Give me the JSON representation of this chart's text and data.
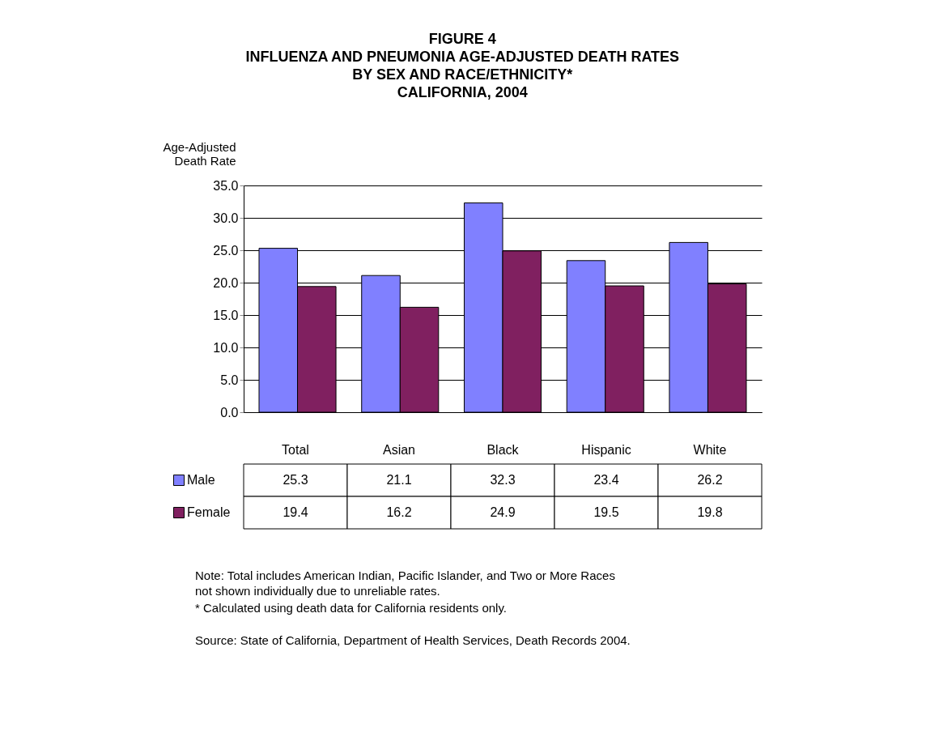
{
  "chart_data": {
    "type": "bar",
    "title": "FIGURE 4\nINFLUENZA AND PNEUMONIA AGE-ADJUSTED DEATH RATES\nBY SEX AND RACE/ETHNICITY*\nCALIFORNIA, 2004",
    "ylabel": "Age-Adjusted Death Rate",
    "categories": [
      "Total",
      "Asian",
      "Black",
      "Hispanic",
      "White"
    ],
    "series": [
      {
        "name": "Male",
        "color": "#8080ff",
        "values": [
          25.3,
          21.1,
          32.3,
          23.4,
          26.2
        ]
      },
      {
        "name": "Female",
        "color": "#802060",
        "values": [
          19.4,
          16.2,
          24.9,
          19.5,
          19.8
        ]
      }
    ],
    "ylim": [
      0,
      35
    ],
    "yticks": [
      {
        "value": 0,
        "label": "0.0"
      },
      {
        "value": 5,
        "label": "5.0"
      },
      {
        "value": 10,
        "label": "10.0"
      },
      {
        "value": 15,
        "label": "15.0"
      },
      {
        "value": 20,
        "label": "20.0"
      },
      {
        "value": 25,
        "label": "25.0"
      },
      {
        "value": 30,
        "label": "30.0"
      },
      {
        "value": 35,
        "label": "35.0"
      }
    ],
    "grid": "y",
    "data_labels": true,
    "legend": "bottom left",
    "annotations": [
      "Note:  Total includes American Indian, Pacific Islander, and Two or More Races not shown individually due to unreliable rates.",
      "* Calculated using death data for California residents only.",
      "Source: State of California, Department of Health Services, Death Records 2004."
    ]
  }
}
